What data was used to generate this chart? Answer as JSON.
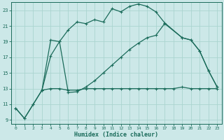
{
  "xlabel": "Humidex (Indice chaleur)",
  "bg_color": "#cce8e8",
  "line_color": "#1a6b5a",
  "grid_color": "#aad4d0",
  "ylim": [
    8.5,
    24
  ],
  "xlim": [
    -0.5,
    23.5
  ],
  "yticks": [
    9,
    11,
    13,
    15,
    17,
    19,
    21,
    23
  ],
  "xticks": [
    0,
    1,
    2,
    3,
    4,
    5,
    6,
    7,
    8,
    9,
    10,
    11,
    12,
    13,
    14,
    15,
    16,
    17,
    18,
    19,
    20,
    21,
    22,
    23
  ],
  "curve1_x": [
    0,
    1,
    2,
    3,
    4,
    5,
    6,
    7,
    8,
    9,
    10,
    11,
    12,
    13,
    14,
    15,
    16,
    17,
    19,
    20,
    21,
    22,
    23
  ],
  "curve1_y": [
    10.5,
    9.2,
    11.0,
    12.8,
    19.2,
    19.0,
    20.5,
    21.5,
    21.3,
    21.8,
    21.5,
    23.2,
    22.8,
    23.5,
    23.8,
    23.5,
    22.8,
    21.4,
    19.5,
    19.2,
    17.8,
    15.3,
    13.2
  ],
  "curve2_x": [
    0,
    1,
    2,
    3,
    4,
    5,
    6,
    7,
    8,
    9,
    10,
    11,
    12,
    13,
    14,
    15,
    16,
    17,
    19,
    20,
    21,
    22,
    23
  ],
  "curve2_y": [
    10.5,
    9.2,
    11.0,
    12.8,
    17.2,
    19.0,
    12.5,
    12.6,
    13.2,
    14.0,
    15.0,
    16.0,
    17.0,
    18.0,
    18.8,
    19.5,
    19.8,
    21.3,
    19.5,
    19.2,
    17.8,
    15.3,
    13.2
  ],
  "curve3_x": [
    3,
    4,
    5,
    6,
    7,
    8,
    9,
    10,
    11,
    12,
    13,
    14,
    15,
    16,
    17,
    18,
    19,
    20,
    21,
    22,
    23
  ],
  "curve3_y": [
    12.8,
    13.0,
    13.0,
    12.8,
    12.8,
    13.0,
    13.0,
    13.0,
    13.0,
    13.0,
    13.0,
    13.0,
    13.0,
    13.0,
    13.0,
    13.0,
    13.2,
    13.0,
    13.0,
    13.0,
    13.0
  ]
}
